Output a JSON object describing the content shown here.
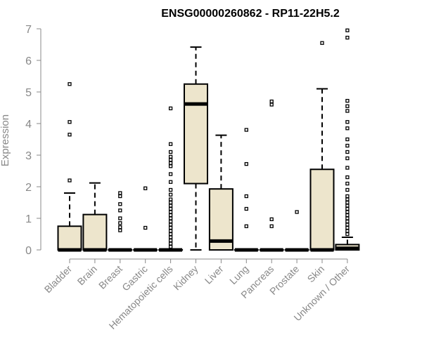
{
  "chart_data": {
    "type": "boxplot",
    "title": "ENSG00000260862 - RP11-22H5.2",
    "xlabel": "",
    "ylabel": "Expression",
    "ylim": [
      0,
      7
    ],
    "yticks": [
      0,
      1,
      2,
      3,
      4,
      5,
      6,
      7
    ],
    "box_fill": "#ede5cc",
    "categories": [
      "Bladder",
      "Brain",
      "Breast",
      "Gastric",
      "Hematopoietic cells",
      "Kidney",
      "Liver",
      "Lung",
      "Pancreas",
      "Prostate",
      "Skin",
      "Unknown / Other"
    ],
    "boxes": [
      {
        "name": "Bladder",
        "q1": 0,
        "median": 0,
        "q3": 0.75,
        "whisker_low": 0,
        "whisker_high": 1.8,
        "outliers": [
          2.2,
          3.65,
          4.05,
          5.25
        ]
      },
      {
        "name": "Brain",
        "q1": 0,
        "median": 0,
        "q3": 1.12,
        "whisker_low": 0,
        "whisker_high": 2.12,
        "outliers": []
      },
      {
        "name": "Breast",
        "q1": 0,
        "median": 0,
        "q3": 0,
        "whisker_low": 0,
        "whisker_high": 0,
        "outliers": [
          0.62,
          0.72,
          0.85,
          1.0,
          1.25,
          1.45,
          1.7,
          1.8
        ]
      },
      {
        "name": "Gastric",
        "q1": 0,
        "median": 0,
        "q3": 0,
        "whisker_low": 0,
        "whisker_high": 0,
        "outliers": [
          0.7,
          1.95
        ]
      },
      {
        "name": "Hematopoietic cells",
        "q1": 0,
        "median": 0,
        "q3": 0,
        "whisker_low": 0,
        "whisker_high": 0,
        "outliers": [
          0.1,
          0.2,
          0.3,
          0.4,
          0.5,
          0.6,
          0.7,
          0.8,
          0.9,
          1.0,
          1.1,
          1.2,
          1.3,
          1.4,
          1.5,
          1.6,
          1.75,
          1.9,
          2.15,
          2.4,
          2.65,
          2.75,
          2.85,
          2.95,
          3.1,
          3.35,
          4.48
        ]
      },
      {
        "name": "Kidney",
        "q1": 2.1,
        "median": 4.62,
        "q3": 5.25,
        "whisker_low": 0,
        "whisker_high": 6.42,
        "outliers": []
      },
      {
        "name": "Liver",
        "q1": 0,
        "median": 0.28,
        "q3": 1.93,
        "whisker_low": 0,
        "whisker_high": 3.63,
        "outliers": []
      },
      {
        "name": "Lung",
        "q1": 0,
        "median": 0,
        "q3": 0,
        "whisker_low": 0,
        "whisker_high": 0,
        "outliers": [
          0.75,
          1.3,
          1.7,
          2.72,
          3.8
        ]
      },
      {
        "name": "Pancreas",
        "q1": 0,
        "median": 0,
        "q3": 0,
        "whisker_low": 0,
        "whisker_high": 0,
        "outliers": [
          0.75,
          0.97,
          4.6,
          4.7
        ]
      },
      {
        "name": "Prostate",
        "q1": 0,
        "median": 0,
        "q3": 0,
        "whisker_low": 0,
        "whisker_high": 0,
        "outliers": [
          1.2
        ]
      },
      {
        "name": "Skin",
        "q1": 0,
        "median": 0,
        "q3": 2.55,
        "whisker_low": 0,
        "whisker_high": 5.1,
        "outliers": [
          6.55
        ]
      },
      {
        "name": "Unknown / Other",
        "q1": 0,
        "median": 0.05,
        "q3": 0.17,
        "whisker_low": 0,
        "whisker_high": 0.4,
        "outliers": [
          0.5,
          0.6,
          0.7,
          0.8,
          0.9,
          1.0,
          1.1,
          1.2,
          1.3,
          1.4,
          1.5,
          1.6,
          1.7,
          1.9,
          2.1,
          2.3,
          2.6,
          2.9,
          3.1,
          3.3,
          3.5,
          3.85,
          4.05,
          4.4,
          4.55,
          4.72,
          6.72,
          6.95
        ]
      }
    ]
  }
}
